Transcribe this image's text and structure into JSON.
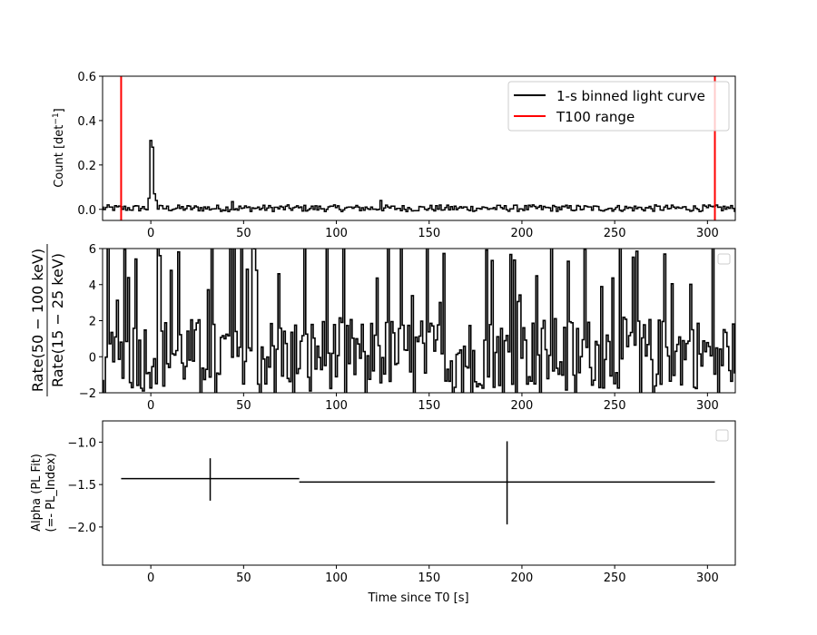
{
  "chart_data": [
    {
      "type": "line",
      "panel": "top",
      "ylabel_main": "Count [det",
      "ylabel_sup": "−1",
      "ylabel_end": "]",
      "xlim": [
        -26,
        315
      ],
      "ylim": [
        -0.05,
        0.6
      ],
      "xticks": [
        0,
        50,
        100,
        150,
        200,
        250,
        300
      ],
      "xtick_labels": [
        "0",
        "50",
        "100",
        "150",
        "200",
        "250",
        "300"
      ],
      "yticks": [
        0.0,
        0.2,
        0.4,
        0.6
      ],
      "ytick_labels": [
        "0.0",
        "0.2",
        "0.4",
        "0.6"
      ],
      "legend_position": "top-right",
      "series": [
        {
          "name": "1-s binned light curve",
          "color": "#000000",
          "baseline": 0.005,
          "noise_amplitude": 0.015,
          "peak": {
            "x": [
              -1,
              0,
              1,
              2,
              3
            ],
            "y": [
              0.05,
              0.31,
              0.28,
              0.07,
              0.04
            ]
          },
          "bumps": {
            "x": [
              44,
              124
            ],
            "y": [
              0.035,
              0.04
            ]
          },
          "x_range": [
            -26,
            315
          ]
        },
        {
          "name": "T100 range",
          "color": "#ff0000",
          "vlines": [
            -16,
            304
          ]
        }
      ]
    },
    {
      "type": "line",
      "panel": "middle",
      "ylabel_numerator": "Rate(50 − 100 keV)",
      "ylabel_denominator": "Rate(15 − 25 keV)",
      "xlim": [
        -26,
        315
      ],
      "ylim": [
        -2,
        6
      ],
      "xticks": [
        0,
        50,
        100,
        150,
        200,
        250,
        300
      ],
      "xtick_labels": [
        "0",
        "50",
        "100",
        "150",
        "200",
        "250",
        "300"
      ],
      "yticks": [
        -2,
        0,
        2,
        4,
        6
      ],
      "ytick_labels": [
        "−2",
        "0",
        "2",
        "4",
        "6"
      ],
      "series": [
        {
          "color": "#000000",
          "description_values": "hardness ratio, 1-s bins, highly noisy between about -2 and 6",
          "x_range": [
            -26,
            315
          ],
          "center": 0.2,
          "noise_amplitude": 2.0,
          "spike_probability": 0.12
        }
      ]
    },
    {
      "type": "scatter",
      "panel": "bottom",
      "ylabel_line1": "Alpha (PL Fit)",
      "ylabel_line2": "(=- PL_Index)",
      "xlabel": "Time since T0 [s]",
      "xlim": [
        -26,
        315
      ],
      "ylim": [
        -2.45,
        -0.75
      ],
      "xticks": [
        0,
        50,
        100,
        150,
        200,
        250,
        300
      ],
      "xtick_labels": [
        "0",
        "50",
        "100",
        "150",
        "200",
        "250",
        "300"
      ],
      "yticks": [
        -2.0,
        -1.5,
        -1.0
      ],
      "ytick_labels": [
        "−2.0",
        "−1.5",
        "−1.0"
      ],
      "series": [
        {
          "color": "#000000",
          "points": [
            {
              "x": 32,
              "xerr_low": -16,
              "xerr_high": 80,
              "y": -1.43,
              "yerr_low": -1.69,
              "yerr_high": -1.19
            },
            {
              "x": 192,
              "xerr_low": 80,
              "xerr_high": 304,
              "y": -1.47,
              "yerr_low": -1.97,
              "yerr_high": -0.99
            }
          ]
        }
      ]
    }
  ]
}
